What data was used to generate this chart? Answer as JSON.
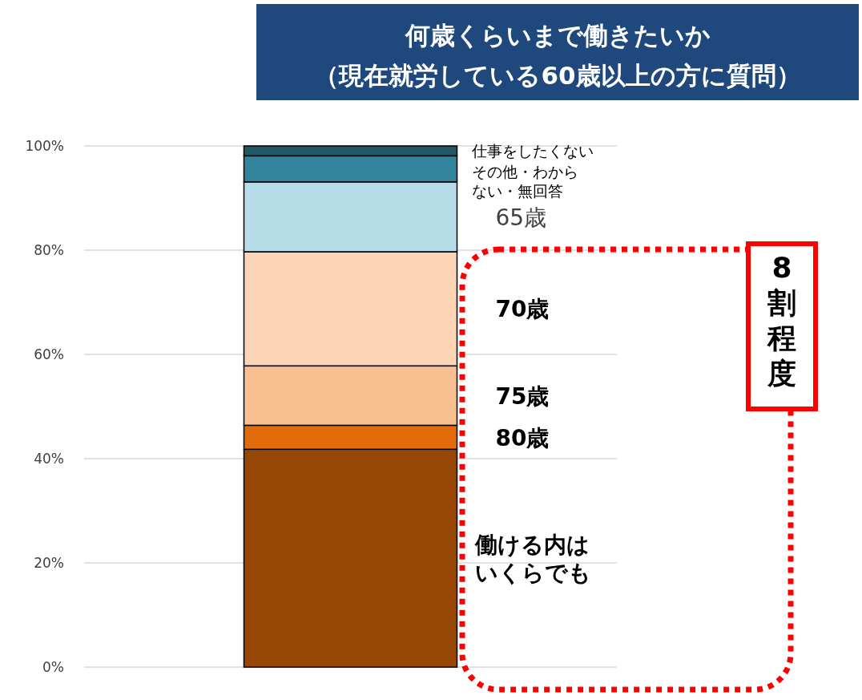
{
  "chart_data": {
    "type": "bar",
    "stacked": true,
    "title": "何歳くらいまで働きたいか",
    "subtitle": "（現在就労している60歳以上の方に質問）",
    "categories": [
      null
    ],
    "series": [
      {
        "name": "働ける内はいくらでも",
        "color": "#974806",
        "values": [
          41.8
        ]
      },
      {
        "name": "80歳",
        "color": "#e36c0a",
        "values": [
          4.6
        ]
      },
      {
        "name": "75歳",
        "color": "#f8c090",
        "values": [
          11.4
        ]
      },
      {
        "name": "70歳",
        "color": "#fbd5b5",
        "values": [
          21.9
        ]
      },
      {
        "name": "65歳",
        "color": "#b7dde8",
        "values": [
          13.4
        ]
      },
      {
        "name": "その他・わからない・無回答",
        "color": "#31849b",
        "values": [
          5.0
        ]
      },
      {
        "name": "仕事をしたくない",
        "color": "#215867",
        "values": [
          1.9
        ]
      }
    ],
    "ylim": [
      0,
      100
    ],
    "yticks": [
      {
        "value": 0,
        "label": "0%"
      },
      {
        "value": 20,
        "label": "20%"
      },
      {
        "value": 40,
        "label": "40%"
      },
      {
        "value": 60,
        "label": "60%"
      },
      {
        "value": 80,
        "label": "80%"
      },
      {
        "value": 100,
        "label": "100%"
      }
    ],
    "grid": "y",
    "annotations": [
      "8割程度"
    ]
  }
}
